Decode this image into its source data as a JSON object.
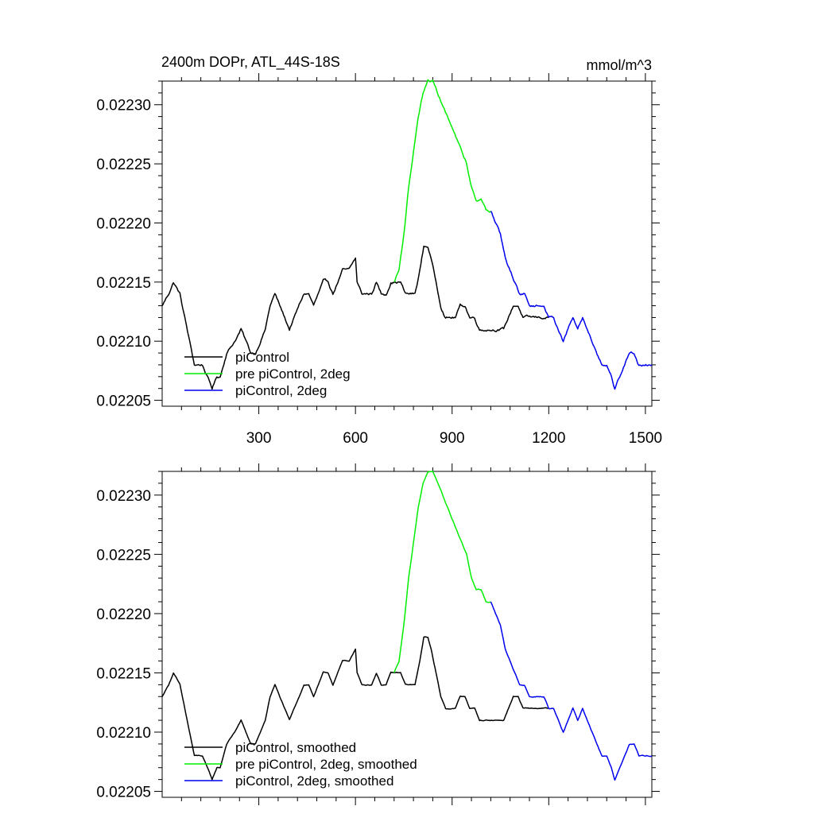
{
  "figure": {
    "left_title": "2400m DOPr, ATL_44S-18S",
    "right_title": "mmol/m^3"
  },
  "chart_data": [
    {
      "type": "line",
      "panel": "top",
      "xlim": [
        0,
        1520
      ],
      "ylim": [
        0.022045,
        0.02232
      ],
      "x_ticks": [
        300,
        600,
        900,
        1200,
        1500
      ],
      "x_tick_labels": [
        "300",
        "600",
        "900",
        "1200",
        "1500"
      ],
      "y_ticks": [
        0.02205,
        0.0221,
        0.02215,
        0.0222,
        0.02225,
        0.0223
      ],
      "y_tick_labels": [
        "0.02205",
        "0.02210",
        "0.02215",
        "0.02220",
        "0.02225",
        "0.02230"
      ],
      "legend_position": "bottom-left",
      "noise": 1.6e-06,
      "series": [
        {
          "name": "piControl",
          "color": "#000000",
          "x": [
            0,
            20,
            35,
            55,
            70,
            85,
            100,
            115,
            125,
            140,
            155,
            170,
            180,
            200,
            225,
            245,
            260,
            275,
            290,
            305,
            320,
            335,
            350,
            365,
            380,
            395,
            410,
            425,
            440,
            455,
            470,
            485,
            500,
            515,
            530,
            545,
            560,
            580,
            600,
            605,
            620,
            635,
            650,
            665,
            680,
            695,
            710,
            725,
            740,
            755,
            770,
            785,
            800,
            812,
            825,
            835,
            850,
            865,
            880,
            895,
            910,
            925,
            940,
            955,
            970,
            985,
            1000,
            1015,
            1030,
            1045,
            1060,
            1075,
            1090,
            1105,
            1120,
            1135,
            1150,
            1165,
            1180,
            1195,
            1200
          ],
          "y": [
            0.02213,
            0.02214,
            0.02215,
            0.02214,
            0.02212,
            0.0221,
            0.02208,
            0.02208,
            0.02208,
            0.02207,
            0.02206,
            0.02207,
            0.02207,
            0.02209,
            0.0221,
            0.02211,
            0.0221,
            0.02209,
            0.02209,
            0.0221,
            0.02211,
            0.02213,
            0.02214,
            0.02213,
            0.02212,
            0.02211,
            0.02212,
            0.02213,
            0.02214,
            0.02214,
            0.02213,
            0.02214,
            0.02215,
            0.02215,
            0.02214,
            0.02215,
            0.02216,
            0.02216,
            0.02217,
            0.02215,
            0.02214,
            0.02214,
            0.02214,
            0.02215,
            0.02214,
            0.02214,
            0.02215,
            0.02215,
            0.02215,
            0.02214,
            0.02214,
            0.02214,
            0.02216,
            0.02218,
            0.02218,
            0.02217,
            0.02215,
            0.02213,
            0.02212,
            0.02212,
            0.02212,
            0.02213,
            0.02213,
            0.02212,
            0.02212,
            0.02211,
            0.02211,
            0.02211,
            0.02211,
            0.02211,
            0.02211,
            0.02212,
            0.02213,
            0.02213,
            0.02212,
            0.02212,
            0.02212,
            0.02212,
            0.02212,
            0.02212,
            0.02212
          ]
        },
        {
          "name": "pre piControl, 2deg",
          "color": "#00ee00",
          "x": [
            720,
            735,
            750,
            765,
            780,
            795,
            810,
            825,
            840,
            855,
            870,
            885,
            900,
            915,
            930,
            945,
            960,
            975,
            990,
            1005,
            1020
          ],
          "y": [
            0.02215,
            0.02216,
            0.02219,
            0.02223,
            0.02226,
            0.02229,
            0.02231,
            0.02232,
            0.02232,
            0.02231,
            0.0223,
            0.02229,
            0.02228,
            0.02227,
            0.02226,
            0.02225,
            0.02223,
            0.02222,
            0.02222,
            0.02221,
            0.02221
          ]
        },
        {
          "name": "piControl, 2deg",
          "color": "#0000ee",
          "x": [
            1020,
            1035,
            1050,
            1065,
            1080,
            1095,
            1110,
            1125,
            1140,
            1155,
            1170,
            1185,
            1200,
            1215,
            1230,
            1245,
            1260,
            1275,
            1290,
            1305,
            1320,
            1335,
            1350,
            1365,
            1380,
            1395,
            1405,
            1420,
            1435,
            1450,
            1465,
            1480,
            1495,
            1510,
            1520
          ],
          "y": [
            0.02221,
            0.0222,
            0.02219,
            0.02217,
            0.02216,
            0.02215,
            0.02214,
            0.02214,
            0.02213,
            0.02213,
            0.02213,
            0.02213,
            0.02212,
            0.02212,
            0.02211,
            0.0221,
            0.02211,
            0.02212,
            0.02211,
            0.02212,
            0.02211,
            0.0221,
            0.02209,
            0.02208,
            0.02208,
            0.02207,
            0.02206,
            0.02207,
            0.02208,
            0.02209,
            0.02209,
            0.02208,
            0.02208,
            0.02208,
            0.02208
          ]
        }
      ]
    },
    {
      "type": "line",
      "panel": "bottom",
      "xlim": [
        0,
        1520
      ],
      "ylim": [
        0.022045,
        0.02232
      ],
      "x_ticks": [
        300,
        600,
        900,
        1200,
        1500
      ],
      "x_tick_labels": [],
      "y_ticks": [
        0.02205,
        0.0221,
        0.02215,
        0.0222,
        0.02225,
        0.0223
      ],
      "y_tick_labels": [
        "0.02205",
        "0.02210",
        "0.02215",
        "0.02220",
        "0.02225",
        "0.02230"
      ],
      "legend_position": "bottom-left",
      "noise": 6e-07,
      "series": [
        {
          "name": "piControl, smoothed",
          "color": "#000000",
          "x": [
            0,
            20,
            35,
            55,
            70,
            85,
            100,
            115,
            125,
            140,
            155,
            170,
            180,
            200,
            225,
            245,
            260,
            275,
            290,
            305,
            320,
            335,
            350,
            365,
            380,
            395,
            410,
            425,
            440,
            455,
            470,
            485,
            500,
            515,
            530,
            545,
            560,
            580,
            600,
            605,
            620,
            635,
            650,
            665,
            680,
            695,
            710,
            725,
            740,
            755,
            770,
            785,
            800,
            812,
            825,
            835,
            850,
            865,
            880,
            895,
            910,
            925,
            940,
            955,
            970,
            985,
            1000,
            1015,
            1030,
            1045,
            1060,
            1075,
            1090,
            1105,
            1120,
            1135,
            1150,
            1165,
            1180,
            1195,
            1200
          ],
          "y": [
            0.02213,
            0.02214,
            0.02215,
            0.02214,
            0.02212,
            0.0221,
            0.02208,
            0.02208,
            0.02208,
            0.02207,
            0.02206,
            0.02207,
            0.02207,
            0.02209,
            0.0221,
            0.02211,
            0.0221,
            0.02209,
            0.02209,
            0.0221,
            0.02211,
            0.02213,
            0.02214,
            0.02213,
            0.02212,
            0.02211,
            0.02212,
            0.02213,
            0.02214,
            0.02214,
            0.02213,
            0.02214,
            0.02215,
            0.02215,
            0.02214,
            0.02215,
            0.02216,
            0.02216,
            0.02217,
            0.02215,
            0.02214,
            0.02214,
            0.02214,
            0.02215,
            0.02214,
            0.02214,
            0.02215,
            0.02215,
            0.02215,
            0.02214,
            0.02214,
            0.02214,
            0.02216,
            0.02218,
            0.02218,
            0.02217,
            0.02215,
            0.02213,
            0.02212,
            0.02212,
            0.02212,
            0.02213,
            0.02213,
            0.02212,
            0.02212,
            0.02211,
            0.02211,
            0.02211,
            0.02211,
            0.02211,
            0.02211,
            0.02212,
            0.02213,
            0.02213,
            0.02212,
            0.02212,
            0.02212,
            0.02212,
            0.02212,
            0.02212,
            0.02212
          ]
        },
        {
          "name": "pre piControl, 2deg, smoothed",
          "color": "#00ee00",
          "x": [
            720,
            735,
            750,
            765,
            780,
            795,
            810,
            825,
            840,
            855,
            870,
            885,
            900,
            915,
            930,
            945,
            960,
            975,
            990,
            1005,
            1020
          ],
          "y": [
            0.02215,
            0.02216,
            0.02219,
            0.02223,
            0.02226,
            0.02229,
            0.02231,
            0.02232,
            0.02232,
            0.02231,
            0.0223,
            0.02229,
            0.02228,
            0.02227,
            0.02226,
            0.02225,
            0.02223,
            0.02222,
            0.02222,
            0.02221,
            0.02221
          ]
        },
        {
          "name": "piControl, 2deg, smoothed",
          "color": "#0000ee",
          "x": [
            1020,
            1035,
            1050,
            1065,
            1080,
            1095,
            1110,
            1125,
            1140,
            1155,
            1170,
            1185,
            1200,
            1215,
            1230,
            1245,
            1260,
            1275,
            1290,
            1305,
            1320,
            1335,
            1350,
            1365,
            1380,
            1395,
            1405,
            1420,
            1435,
            1450,
            1465,
            1480,
            1495,
            1510,
            1520
          ],
          "y": [
            0.02221,
            0.0222,
            0.02219,
            0.02217,
            0.02216,
            0.02215,
            0.02214,
            0.02214,
            0.02213,
            0.02213,
            0.02213,
            0.02213,
            0.02212,
            0.02212,
            0.02211,
            0.0221,
            0.02211,
            0.02212,
            0.02211,
            0.02212,
            0.02211,
            0.0221,
            0.02209,
            0.02208,
            0.02208,
            0.02207,
            0.02206,
            0.02207,
            0.02208,
            0.02209,
            0.02209,
            0.02208,
            0.02208,
            0.02208,
            0.02208
          ]
        }
      ]
    }
  ]
}
